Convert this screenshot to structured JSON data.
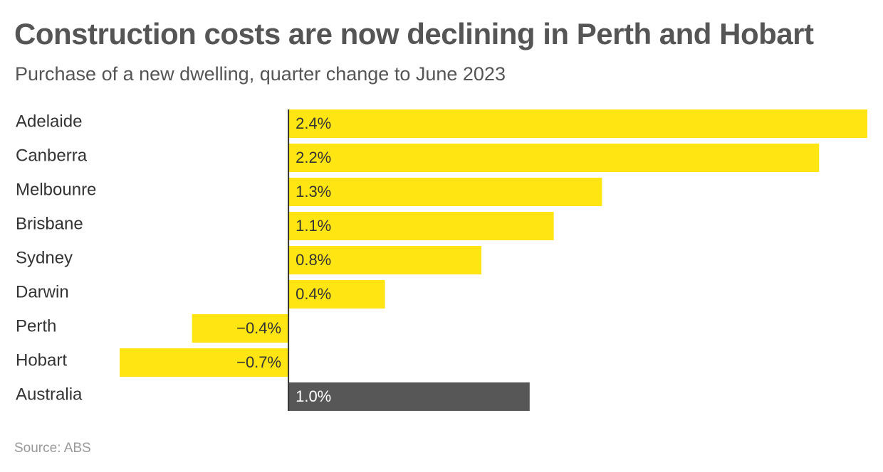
{
  "chart_data": {
    "type": "bar",
    "orientation": "horizontal",
    "title": "Construction costs are now declining in Perth and Hobart",
    "subtitle": "Purchase of a new dwelling, quarter change to June 2023",
    "categories": [
      "Adelaide",
      "Canberra",
      "Melbounre",
      "Brisbane",
      "Sydney",
      "Darwin",
      "Perth",
      "Hobart",
      "Australia"
    ],
    "values": [
      2.4,
      2.2,
      1.3,
      1.1,
      0.8,
      0.4,
      -0.4,
      -0.7,
      1.0
    ],
    "value_labels": [
      "2.4%",
      "2.2%",
      "1.3%",
      "1.1%",
      "0.8%",
      "0.4%",
      "−0.4%",
      "−0.7%",
      "1.0%"
    ],
    "xlim": [
      -0.7,
      2.4
    ],
    "grid": false,
    "legend": "none",
    "source": "Source: ABS"
  },
  "colors": {
    "bar": "#ffe512",
    "highlight_bar": "#575757",
    "axis": "#333333"
  },
  "highlight_category": "Australia"
}
